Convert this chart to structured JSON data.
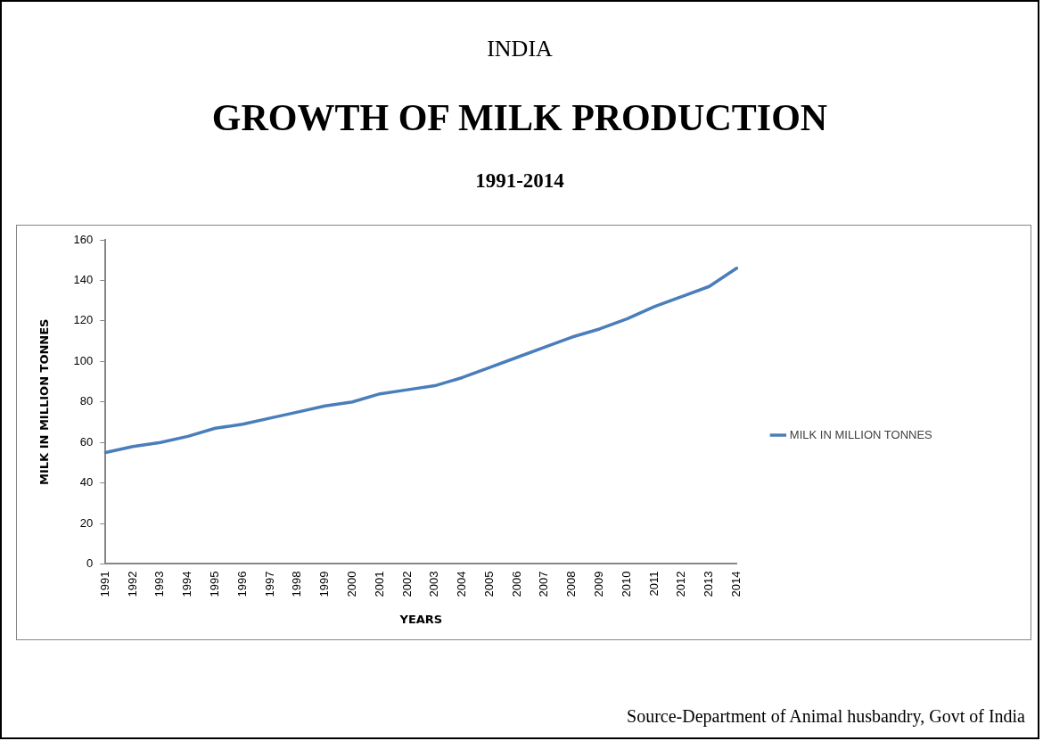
{
  "chart_data": {
    "type": "line",
    "title": "GROWTH OF MILK PRODUCTION",
    "subtitle": "1991-2014",
    "xlabel": "YEARS",
    "ylabel": "MILK IN MILLION TONNES",
    "annotations": [
      "INDIA",
      "Source-Department of Animal husbandry, Govt of India"
    ],
    "categories": [
      "1991",
      "1992",
      "1993",
      "1994",
      "1995",
      "1996",
      "1997",
      "1998",
      "1999",
      "2000",
      "2001",
      "2002",
      "2003",
      "2004",
      "2005",
      "2006",
      "2007",
      "2008",
      "2009",
      "2010",
      "2011",
      "2012",
      "2013",
      "2014"
    ],
    "series": [
      {
        "name": "MILK IN MILLION TONNES",
        "color": "#4a7ebb",
        "values": [
          55,
          58,
          60,
          63,
          67,
          69,
          72,
          75,
          78,
          80,
          84,
          86,
          88,
          92,
          97,
          102,
          107,
          112,
          116,
          121,
          127,
          132,
          137,
          146
        ]
      }
    ],
    "ylim": [
      0,
      160
    ],
    "yticks": [
      0,
      20,
      40,
      60,
      80,
      100,
      120,
      140,
      160
    ],
    "grid": false,
    "legend": "right",
    "marker": "none",
    "line_style": "solid"
  }
}
